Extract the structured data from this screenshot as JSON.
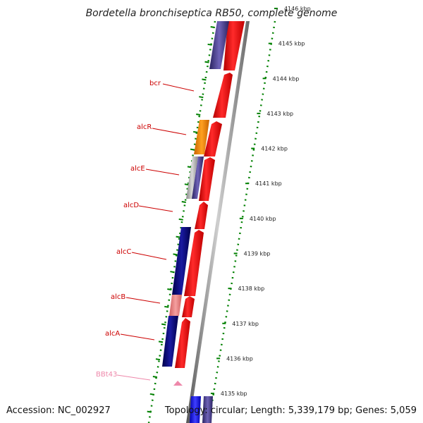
{
  "title": "Bordetella bronchiseptica RB50, complete genome",
  "accession_text": "Accession: NC_002927",
  "topology_text": "Topology: circular; Length: 5,339,179 bp; Genes: 5,059",
  "scale_ticks": [
    {
      "label": "4146 kbp",
      "kbp": 4146
    },
    {
      "label": "4145 kbp",
      "kbp": 4145
    },
    {
      "label": "4144 kbp",
      "kbp": 4144
    },
    {
      "label": "4143 kbp",
      "kbp": 4143
    },
    {
      "label": "4142 kbp",
      "kbp": 4142
    },
    {
      "label": "4141 kbp",
      "kbp": 4141
    },
    {
      "label": "4140 kbp",
      "kbp": 4140
    },
    {
      "label": "4139 kbp",
      "kbp": 4139
    },
    {
      "label": "4138 kbp",
      "kbp": 4138
    },
    {
      "label": "4137 kbp",
      "kbp": 4137
    },
    {
      "label": "4136 kbp",
      "kbp": 4136
    },
    {
      "label": "4135 kbp",
      "kbp": 4135
    }
  ],
  "gene_labels": [
    {
      "name": "bcr",
      "color": "#cc0000"
    },
    {
      "name": "alcR",
      "color": "#cc0000"
    },
    {
      "name": "alcE",
      "color": "#cc0000"
    },
    {
      "name": "alcD",
      "color": "#cc0000"
    },
    {
      "name": "alcC",
      "color": "#cc0000"
    },
    {
      "name": "alcB",
      "color": "#cc0000"
    },
    {
      "name": "alcA",
      "color": "#cc0000"
    },
    {
      "name": "BBt43",
      "color": "#ee88aa"
    }
  ],
  "colors": {
    "cds_red": "#ff0000",
    "navy": "#000080",
    "slate": "#4a3f8f",
    "orange": "#ff8c00",
    "pink": "#f08080",
    "grey": "#aaaaaa",
    "blue": "#0000ff",
    "dotted_green": "#008000",
    "backbone": "#888888"
  }
}
